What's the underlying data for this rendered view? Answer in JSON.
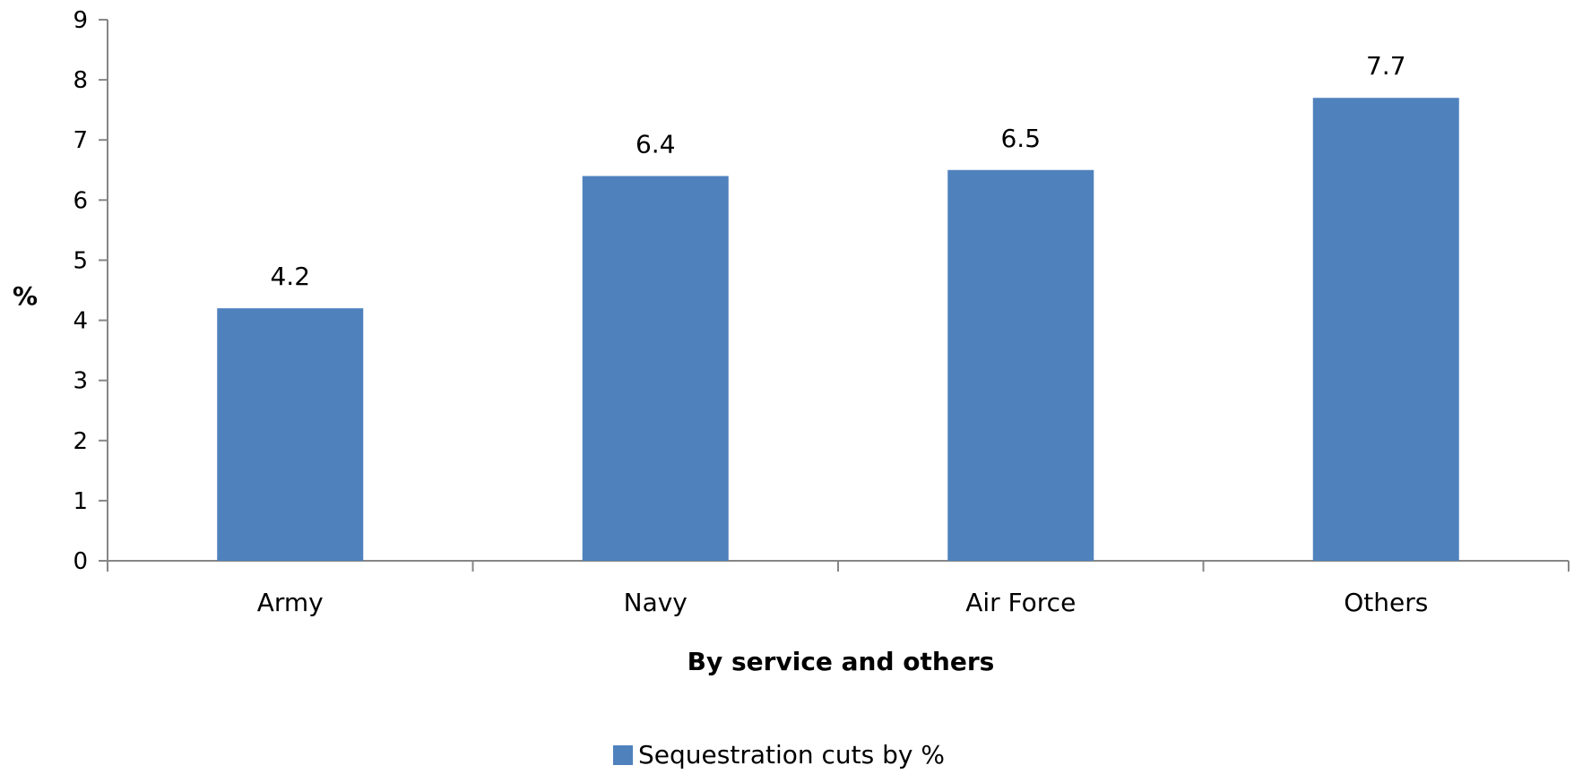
{
  "chart_data": {
    "type": "bar",
    "categories": [
      "Army",
      "Navy",
      "Air Force",
      "Others"
    ],
    "series": [
      {
        "name": "Sequestration cuts by %",
        "values": [
          4.2,
          6.4,
          6.5,
          7.7
        ]
      }
    ],
    "data_labels": [
      "4.2",
      "6.4",
      "6.5",
      "7.7"
    ],
    "title": "",
    "xlabel": "By service and others",
    "ylabel": "%",
    "ylim": [
      0,
      9
    ],
    "yticks": [
      0,
      1,
      2,
      3,
      4,
      5,
      6,
      7,
      8,
      9
    ],
    "grid": false,
    "legend": "bottom",
    "colors": {
      "bar": "#4F81BD",
      "axis": "#868686"
    }
  }
}
